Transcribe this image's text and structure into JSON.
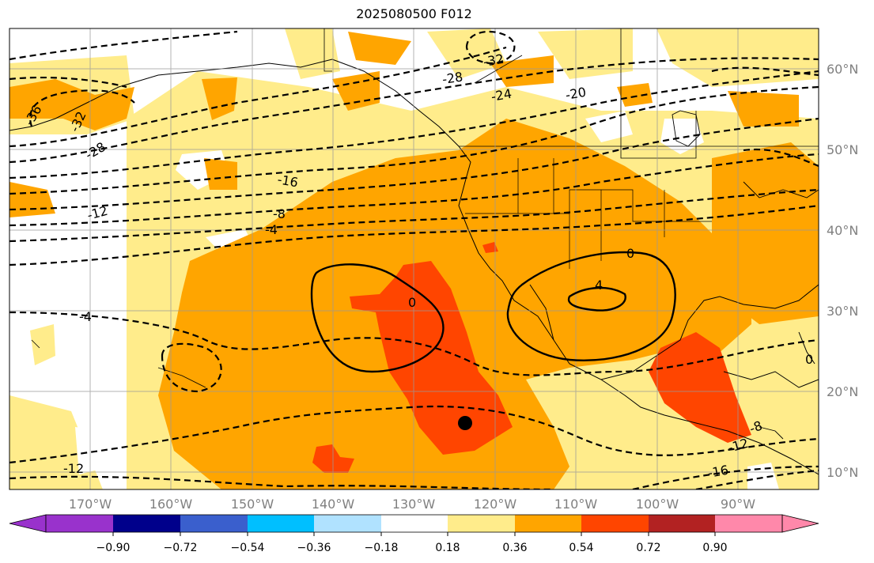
{
  "title": "2025080500 F012",
  "map": {
    "lon_labels": [
      "170°W",
      "160°W",
      "150°W",
      "140°W",
      "130°W",
      "120°W",
      "110°W",
      "100°W",
      "90°W"
    ],
    "lat_labels": [
      "60°N",
      "50°N",
      "40°N",
      "30°N",
      "20°N",
      "10°N"
    ],
    "contour_labels": [
      "-36",
      "-32",
      "-32",
      "-28",
      "-28",
      "-24",
      "-20",
      "-16",
      "-12",
      "-8",
      "-4",
      "-4",
      "0",
      "0",
      "4",
      "0",
      "-8",
      "-12",
      "-16",
      "-12"
    ],
    "marker": "storm-center"
  },
  "colorbar": {
    "tick_labels": [
      "−0.90",
      "−0.72",
      "−0.54",
      "−0.36",
      "−0.18",
      "0.18",
      "0.36",
      "0.54",
      "0.72",
      "0.90"
    ],
    "colors": [
      "#9932CC",
      "#00008B",
      "#3A5FCD",
      "#00BFFF",
      "#B0E2FF",
      "#FFFFFF",
      "#FFEC8B",
      "#FFA500",
      "#FF4500",
      "#B22222",
      "#FF88AA"
    ]
  },
  "colors": {
    "light": "#FFEC8B",
    "orange": "#FFA500",
    "red_orange": "#FF4500",
    "grid": "#9a9a9a"
  }
}
